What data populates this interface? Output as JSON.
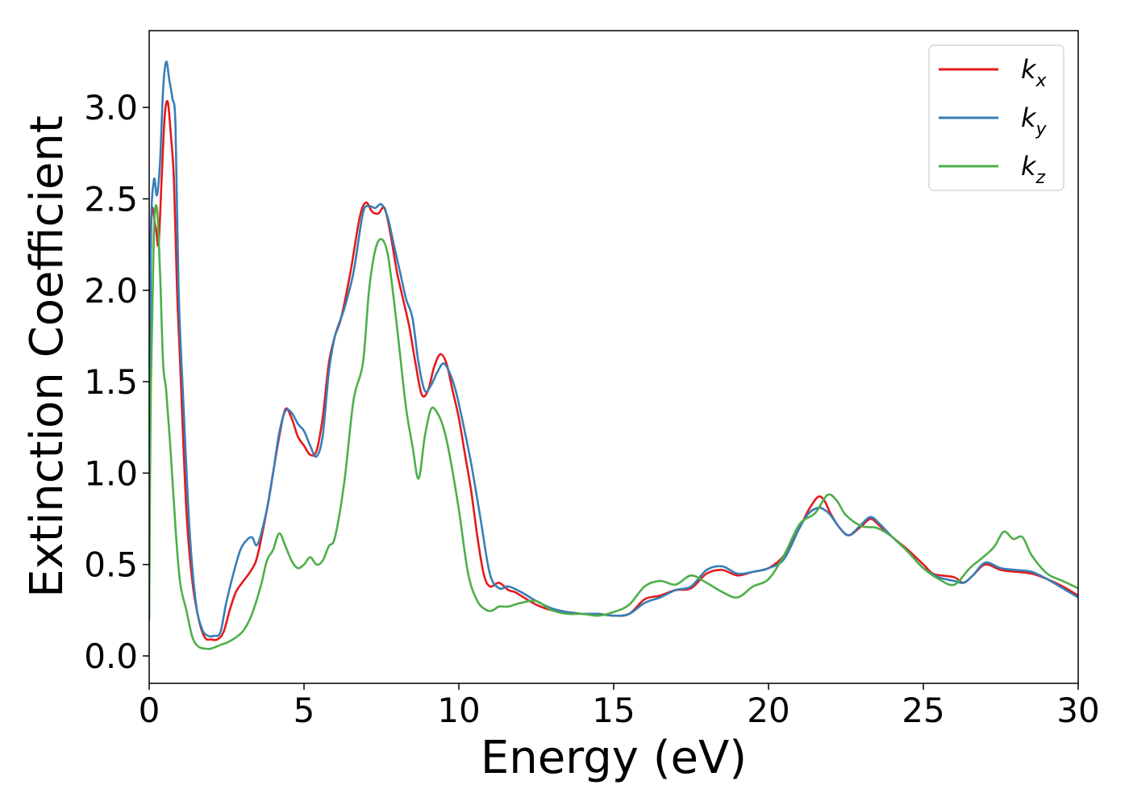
{
  "chart_data": {
    "type": "line",
    "title": "",
    "xlabel": "Energy (eV)",
    "ylabel": "Extinction Coefficient",
    "xlim": [
      0,
      30
    ],
    "ylim": [
      -0.15,
      3.42
    ],
    "x_ticks": [
      "0",
      "5",
      "10",
      "15",
      "20",
      "25",
      "30"
    ],
    "y_ticks": [
      "0.0",
      "0.5",
      "1.0",
      "1.5",
      "2.0",
      "2.5",
      "3.0"
    ],
    "grid": false,
    "legend_position": "top-right",
    "series": [
      {
        "name": "k",
        "subscript": "x",
        "color": "#e41a1c",
        "x": [
          0,
          0.05,
          0.2,
          0.3,
          0.4,
          0.5,
          0.6,
          0.7,
          0.8,
          0.9,
          1.0,
          1.2,
          1.4,
          1.6,
          1.8,
          2.0,
          2.2,
          2.4,
          2.6,
          2.8,
          3.0,
          3.3,
          3.5,
          3.8,
          4.0,
          4.2,
          4.4,
          4.6,
          4.8,
          5.0,
          5.2,
          5.4,
          5.6,
          5.8,
          6.0,
          6.2,
          6.5,
          6.8,
          7.0,
          7.2,
          7.4,
          7.6,
          7.8,
          8.0,
          8.2,
          8.4,
          8.6,
          8.8,
          9.0,
          9.2,
          9.4,
          9.6,
          9.8,
          10.0,
          10.2,
          10.4,
          10.6,
          10.8,
          11.0,
          11.3,
          11.6,
          11.8,
          12.0,
          12.5,
          13.0,
          13.5,
          14.0,
          14.5,
          15.0,
          15.5,
          16.0,
          16.5,
          17.0,
          17.5,
          18.0,
          18.5,
          19.0,
          19.5,
          20.0,
          20.5,
          21.0,
          21.3,
          21.6,
          21.8,
          22.0,
          22.3,
          22.6,
          23.0,
          23.3,
          23.6,
          24.0,
          24.5,
          25.0,
          25.3,
          25.6,
          26.0,
          26.3,
          26.6,
          27.0,
          27.5,
          28.0,
          28.5,
          29.0,
          29.5,
          30.0
        ],
        "values": [
          0.5,
          2.3,
          2.35,
          2.25,
          2.6,
          2.95,
          3.03,
          2.85,
          2.6,
          2.0,
          1.6,
          0.8,
          0.4,
          0.2,
          0.1,
          0.09,
          0.09,
          0.13,
          0.25,
          0.35,
          0.4,
          0.47,
          0.55,
          0.8,
          1.0,
          1.2,
          1.35,
          1.3,
          1.2,
          1.15,
          1.1,
          1.12,
          1.3,
          1.6,
          1.75,
          1.85,
          2.1,
          2.4,
          2.48,
          2.43,
          2.42,
          2.45,
          2.3,
          2.1,
          1.95,
          1.8,
          1.6,
          1.43,
          1.45,
          1.58,
          1.65,
          1.6,
          1.45,
          1.3,
          1.1,
          0.9,
          0.65,
          0.45,
          0.38,
          0.4,
          0.36,
          0.35,
          0.33,
          0.28,
          0.25,
          0.24,
          0.23,
          0.23,
          0.22,
          0.23,
          0.31,
          0.33,
          0.36,
          0.37,
          0.45,
          0.47,
          0.44,
          0.46,
          0.48,
          0.55,
          0.7,
          0.8,
          0.87,
          0.85,
          0.78,
          0.7,
          0.66,
          0.71,
          0.75,
          0.71,
          0.65,
          0.58,
          0.5,
          0.45,
          0.44,
          0.43,
          0.4,
          0.44,
          0.5,
          0.47,
          0.46,
          0.45,
          0.42,
          0.38,
          0.33
        ]
      },
      {
        "name": "k",
        "subscript": "y",
        "color": "#377eb8",
        "x": [
          0,
          0.05,
          0.15,
          0.25,
          0.35,
          0.45,
          0.55,
          0.65,
          0.75,
          0.85,
          0.95,
          1.1,
          1.3,
          1.5,
          1.7,
          1.9,
          2.1,
          2.3,
          2.5,
          2.8,
          3.0,
          3.3,
          3.5,
          3.8,
          4.0,
          4.2,
          4.4,
          4.6,
          4.8,
          5.0,
          5.2,
          5.4,
          5.6,
          5.8,
          6.0,
          6.3,
          6.6,
          6.9,
          7.1,
          7.3,
          7.5,
          7.7,
          7.9,
          8.1,
          8.3,
          8.5,
          8.7,
          8.9,
          9.1,
          9.3,
          9.5,
          9.7,
          9.9,
          10.1,
          10.4,
          10.7,
          11.0,
          11.3,
          11.6,
          12.0,
          12.5,
          13.0,
          13.5,
          14.0,
          14.5,
          15.0,
          15.5,
          16.0,
          16.5,
          17.0,
          17.5,
          18.0,
          18.5,
          19.0,
          19.5,
          20.0,
          20.5,
          21.0,
          21.3,
          21.6,
          21.8,
          22.0,
          22.3,
          22.6,
          23.0,
          23.3,
          23.6,
          24.0,
          24.5,
          25.0,
          25.5,
          26.0,
          26.3,
          26.6,
          27.0,
          27.5,
          28.0,
          28.5,
          29.0,
          29.5,
          30.0
        ],
        "values": [
          0.4,
          2.2,
          2.6,
          2.52,
          2.7,
          3.1,
          3.25,
          3.15,
          3.05,
          2.9,
          2.0,
          1.4,
          0.7,
          0.3,
          0.15,
          0.11,
          0.11,
          0.13,
          0.3,
          0.5,
          0.6,
          0.65,
          0.61,
          0.8,
          1.0,
          1.22,
          1.34,
          1.33,
          1.27,
          1.23,
          1.15,
          1.09,
          1.2,
          1.55,
          1.75,
          1.9,
          2.1,
          2.42,
          2.46,
          2.45,
          2.47,
          2.4,
          2.25,
          2.1,
          1.95,
          1.85,
          1.6,
          1.45,
          1.48,
          1.55,
          1.6,
          1.55,
          1.45,
          1.3,
          1.05,
          0.75,
          0.45,
          0.37,
          0.38,
          0.35,
          0.3,
          0.26,
          0.24,
          0.23,
          0.23,
          0.22,
          0.23,
          0.29,
          0.32,
          0.36,
          0.38,
          0.47,
          0.49,
          0.45,
          0.46,
          0.48,
          0.53,
          0.7,
          0.78,
          0.81,
          0.8,
          0.77,
          0.7,
          0.66,
          0.72,
          0.76,
          0.72,
          0.65,
          0.57,
          0.48,
          0.43,
          0.41,
          0.4,
          0.44,
          0.51,
          0.48,
          0.47,
          0.46,
          0.42,
          0.37,
          0.32
        ]
      },
      {
        "name": "k",
        "subscript": "z",
        "color": "#4daf4a",
        "x": [
          0,
          0.05,
          0.15,
          0.25,
          0.35,
          0.45,
          0.55,
          0.7,
          0.85,
          1.0,
          1.2,
          1.4,
          1.6,
          1.8,
          2.0,
          2.3,
          2.6,
          3.0,
          3.3,
          3.6,
          3.8,
          4.0,
          4.2,
          4.4,
          4.6,
          4.8,
          5.0,
          5.2,
          5.4,
          5.6,
          5.8,
          6.0,
          6.3,
          6.6,
          6.9,
          7.1,
          7.3,
          7.5,
          7.7,
          7.9,
          8.1,
          8.3,
          8.5,
          8.7,
          8.9,
          9.1,
          9.3,
          9.5,
          9.7,
          10.0,
          10.3,
          10.6,
          10.9,
          11.1,
          11.3,
          11.6,
          12.0,
          12.5,
          13.0,
          13.5,
          14.0,
          14.5,
          15.0,
          15.5,
          16.0,
          16.5,
          17.0,
          17.5,
          18.0,
          18.5,
          19.0,
          19.5,
          20.0,
          20.5,
          21.0,
          21.5,
          21.9,
          22.2,
          22.5,
          23.0,
          23.5,
          24.0,
          24.5,
          25.0,
          25.5,
          26.0,
          26.5,
          27.0,
          27.3,
          27.6,
          27.9,
          28.2,
          28.5,
          29.0,
          29.5,
          30.0
        ],
        "values": [
          0.2,
          1.4,
          2.3,
          2.45,
          2.1,
          1.6,
          1.45,
          1.1,
          0.7,
          0.4,
          0.25,
          0.1,
          0.05,
          0.04,
          0.04,
          0.06,
          0.08,
          0.13,
          0.22,
          0.38,
          0.52,
          0.58,
          0.67,
          0.6,
          0.52,
          0.48,
          0.5,
          0.54,
          0.5,
          0.52,
          0.6,
          0.65,
          0.95,
          1.4,
          1.6,
          2.0,
          2.22,
          2.28,
          2.2,
          1.95,
          1.65,
          1.35,
          1.15,
          0.97,
          1.2,
          1.35,
          1.33,
          1.25,
          1.1,
          0.8,
          0.45,
          0.3,
          0.25,
          0.25,
          0.27,
          0.27,
          0.29,
          0.3,
          0.25,
          0.23,
          0.23,
          0.22,
          0.24,
          0.28,
          0.38,
          0.41,
          0.39,
          0.44,
          0.4,
          0.35,
          0.32,
          0.38,
          0.42,
          0.55,
          0.72,
          0.78,
          0.88,
          0.85,
          0.77,
          0.71,
          0.7,
          0.65,
          0.57,
          0.48,
          0.42,
          0.39,
          0.48,
          0.55,
          0.6,
          0.68,
          0.64,
          0.65,
          0.55,
          0.45,
          0.41,
          0.37
        ]
      }
    ]
  }
}
